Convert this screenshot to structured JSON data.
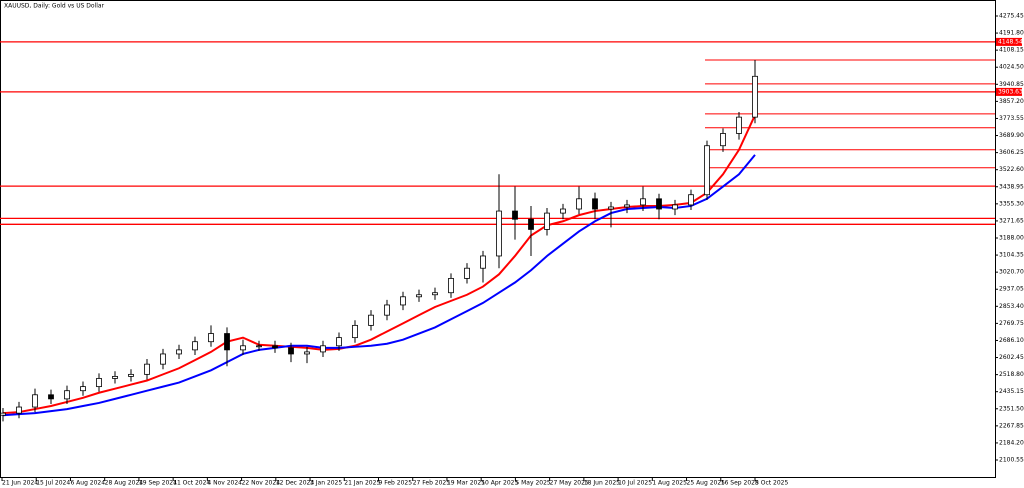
{
  "chart_data": {
    "type": "candlestick",
    "title": "XAUUSD, Daily:  Gold vs US Dollar",
    "x_labels": [
      "21 Jun 2024",
      "15 Jul 2024",
      "6 Aug 2024",
      "28 Aug 2024",
      "19 Sep 2024",
      "11 Oct 2024",
      "4 Nov 2024",
      "22 Nov 2024",
      "12 Dec 2024",
      "3 Jan 2025",
      "21 Jan 2025",
      "9 Feb 2025",
      "27 Feb 2025",
      "19 Mar 2025",
      "10 Apr 2025",
      "5 May 2025",
      "27 May 2025",
      "18 Jun 2025",
      "10 Jul 2025",
      "1 Aug 2025",
      "25 Aug 2025",
      "16 Sep 2025",
      "8 Oct 2025"
    ],
    "open": [
      2320,
      2330,
      2360,
      2420,
      2400,
      2440,
      2460,
      2500,
      2510,
      2520,
      2570,
      2620,
      2640,
      2680,
      2720,
      2640,
      2660,
      2660,
      2650,
      2620,
      2630,
      2660,
      2700,
      2760,
      2810,
      2860,
      2900,
      2910,
      2920,
      2990,
      3040,
      3100,
      3320,
      3280,
      3230,
      3310,
      3330,
      3380,
      3330,
      3340,
      3350,
      3380,
      3330,
      3350,
      3400,
      3640,
      3700,
      3780
    ],
    "high": [
      2355,
      2385,
      2450,
      2445,
      2465,
      2485,
      2525,
      2535,
      2545,
      2595,
      2645,
      2665,
      2705,
      2760,
      2750,
      2690,
      2685,
      2685,
      2675,
      2655,
      2685,
      2725,
      2785,
      2835,
      2885,
      2925,
      2935,
      2945,
      3015,
      3065,
      3125,
      3500,
      3440,
      3345,
      3335,
      3355,
      3440,
      3410,
      3365,
      3375,
      3440,
      3405,
      3375,
      3425,
      3665,
      3725,
      3805,
      4060
    ],
    "low": [
      2290,
      2305,
      2335,
      2375,
      2375,
      2415,
      2435,
      2475,
      2485,
      2495,
      2545,
      2595,
      2615,
      2655,
      2560,
      2615,
      2635,
      2625,
      2580,
      2575,
      2605,
      2635,
      2675,
      2735,
      2785,
      2835,
      2875,
      2885,
      2895,
      2965,
      2970,
      3040,
      3180,
      3100,
      3200,
      3280,
      3305,
      3280,
      3240,
      3310,
      3320,
      3280,
      3300,
      3325,
      3375,
      3610,
      3670,
      3750
    ],
    "close": [
      2330,
      2360,
      2420,
      2400,
      2440,
      2460,
      2500,
      2510,
      2520,
      2570,
      2620,
      2640,
      2680,
      2720,
      2640,
      2660,
      2660,
      2650,
      2620,
      2630,
      2660,
      2700,
      2760,
      2810,
      2860,
      2900,
      2910,
      2920,
      2990,
      3040,
      3100,
      3320,
      3280,
      3230,
      3310,
      3330,
      3380,
      3330,
      3340,
      3350,
      3380,
      3330,
      3350,
      3400,
      3640,
      3700,
      3780,
      3980
    ],
    "moving_averages": [
      {
        "color": "#ff0000",
        "values": [
          2330,
          2335,
          2350,
          2365,
          2385,
          2405,
          2430,
          2450,
          2470,
          2490,
          2520,
          2550,
          2590,
          2630,
          2680,
          2700,
          2665,
          2660,
          2655,
          2650,
          2640,
          2645,
          2660,
          2690,
          2730,
          2770,
          2810,
          2850,
          2880,
          2910,
          2950,
          3010,
          3100,
          3200,
          3250,
          3270,
          3300,
          3320,
          3330,
          3340,
          3345,
          3345,
          3350,
          3360,
          3410,
          3500,
          3620,
          3790
        ]
      },
      {
        "color": "#0000ff",
        "values": [
          2320,
          2325,
          2330,
          2340,
          2350,
          2365,
          2380,
          2400,
          2420,
          2440,
          2460,
          2480,
          2510,
          2540,
          2580,
          2620,
          2640,
          2650,
          2660,
          2660,
          2650,
          2650,
          2655,
          2660,
          2670,
          2690,
          2720,
          2750,
          2790,
          2830,
          2870,
          2920,
          2970,
          3030,
          3100,
          3160,
          3220,
          3270,
          3310,
          3330,
          3335,
          3340,
          3335,
          3345,
          3380,
          3440,
          3500,
          3595
        ]
      }
    ],
    "levels": [
      4148.54,
      3903.63,
      3442,
      3284,
      3255
    ],
    "short_levels": [
      4060,
      3943,
      3796,
      3728,
      3620,
      3532
    ],
    "level_color": "#ff0000",
    "price_labels": [
      4148.54,
      3903.63
    ],
    "ylim": [
      2012.4,
      4353.8
    ],
    "yticks": [
      4275.45,
      {
        "value": 4191.8,
        "label": "4191.80"
      },
      4108.15,
      {
        "value": 4024.5,
        "label": "4024.50"
      },
      3940.85,
      {
        "value": 3857.2,
        "label": "3857.20"
      },
      3773.55,
      {
        "value": 3689.9,
        "label": "3689.90"
      },
      3606.25,
      {
        "value": 3522.6,
        "label": "3522.60"
      },
      3438.95,
      {
        "value": 3355.3,
        "label": "3355.30"
      },
      3271.65,
      {
        "value": 3188,
        "label": "3188.00"
      },
      3104.35,
      {
        "value": 3020.7,
        "label": "3020.70"
      },
      2937.05,
      {
        "value": 2853.4,
        "label": "2853.40"
      },
      2769.75,
      {
        "value": 2686.1,
        "label": "2686.10"
      },
      2602.45,
      {
        "value": 2518.8,
        "label": "2518.80"
      },
      2435.15,
      {
        "value": 2351.5,
        "label": "2351.50"
      },
      2267.85,
      {
        "value": 2184.2,
        "label": "2184.20"
      },
      2100.55
    ]
  }
}
